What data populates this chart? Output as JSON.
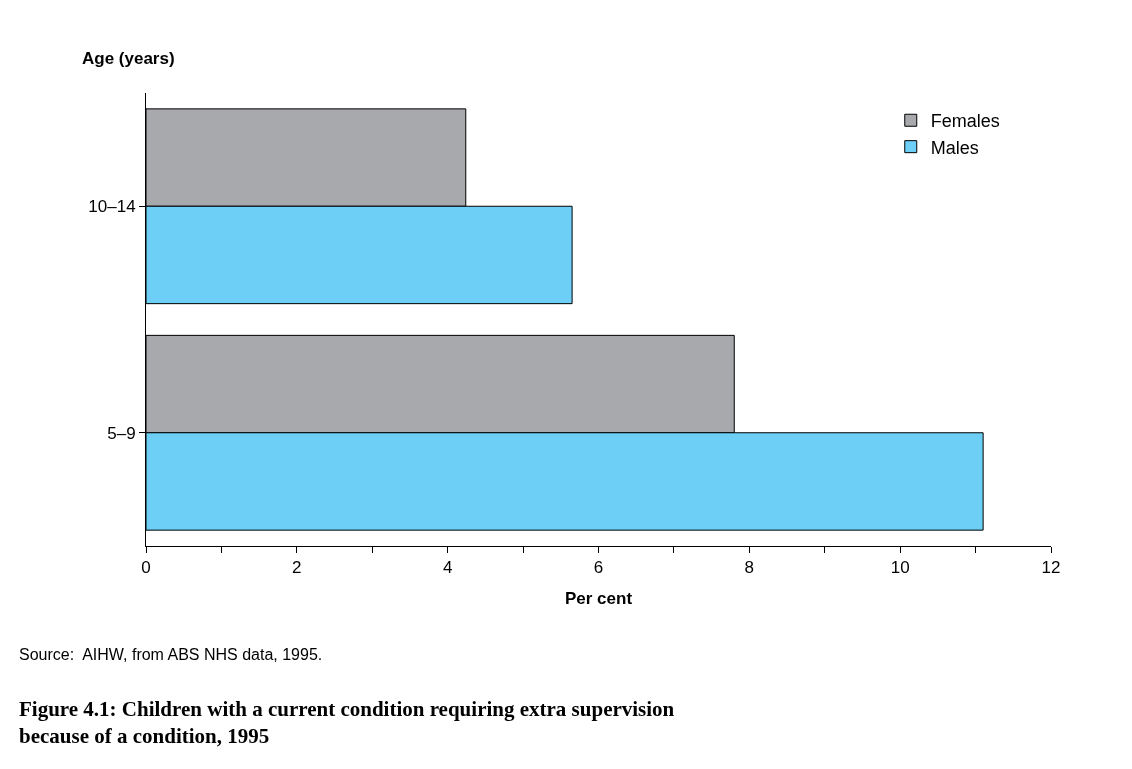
{
  "chart_data": {
    "type": "bar",
    "orientation": "horizontal",
    "title": "Figure 4.1: Children with a current condition requiring extra supervision because of a condition, 1995",
    "xlabel": "Per cent",
    "ylabel": "Age (years)",
    "categories": [
      "10–14",
      "5–9"
    ],
    "series": [
      {
        "name": "Females",
        "color": "#a7a9ac",
        "values": [
          4.24,
          7.8
        ]
      },
      {
        "name": "Males",
        "color": "#6dcff6",
        "values": [
          5.65,
          11.1
        ]
      }
    ],
    "xlim": [
      0,
      12
    ],
    "xticks": [
      0,
      {
        "value": 1,
        "label": null
      },
      2,
      {
        "value": 3,
        "label": null
      },
      4,
      {
        "value": 5,
        "label": null
      },
      6,
      {
        "value": 7,
        "label": null
      },
      8,
      {
        "value": 9,
        "label": null
      },
      10,
      {
        "value": 11,
        "label": null
      },
      12
    ],
    "legend": "top right",
    "annotations": [
      "Source:  AIHW, from ABS NHS data, 1995."
    ]
  }
}
